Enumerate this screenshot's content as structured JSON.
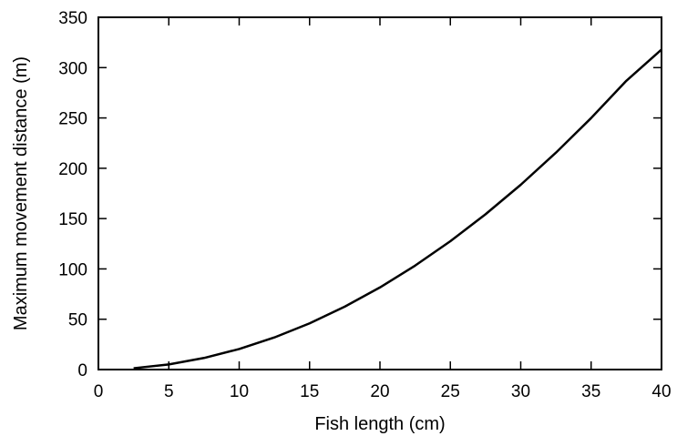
{
  "chart_data": {
    "type": "line",
    "title": "",
    "xlabel": "Fish length (cm)",
    "ylabel": "Maximum movement distance (m)",
    "xlim": [
      0,
      40
    ],
    "ylim": [
      0,
      350
    ],
    "xticks": [
      0,
      5,
      10,
      15,
      20,
      25,
      30,
      35,
      40
    ],
    "yticks": [
      0,
      50,
      100,
      150,
      200,
      250,
      300,
      350
    ],
    "grid": false,
    "legend": "none",
    "series": [
      {
        "color": "#000000",
        "x": [
          2.5,
          5,
          7.5,
          10,
          12.5,
          15,
          17.5,
          20,
          22.5,
          25,
          27.5,
          30,
          32.5,
          35,
          37.5,
          40
        ],
        "y": [
          1.3,
          5.1,
          11.5,
          20.4,
          31.9,
          45.9,
          62.5,
          81.6,
          103.3,
          127.5,
          154.3,
          183.6,
          215.5,
          249.9,
          286.9,
          318
        ]
      }
    ]
  }
}
